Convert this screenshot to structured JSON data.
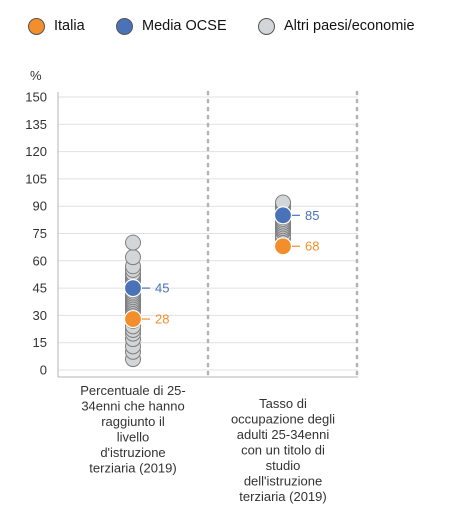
{
  "legend": [
    {
      "label": "Italia",
      "color": "#f28e2b"
    },
    {
      "label": "Media OCSE",
      "color": "#4a72b8"
    },
    {
      "label": "Altri paesi/economie",
      "color": "#d3d6d9"
    }
  ],
  "chart_data": {
    "type": "scatter",
    "ylabel": "%",
    "ylim": [
      0,
      150
    ],
    "yticks": [
      0,
      15,
      30,
      45,
      60,
      75,
      90,
      105,
      120,
      135,
      150
    ],
    "categories": [
      [
        "Percentuale di 25-",
        "34enni che hanno",
        "raggiunto il",
        "livello",
        "d'istruzione",
        "terziaria (2019)"
      ],
      [
        "Tasso di",
        "occupazione degli",
        "adulti 25-34enni",
        "con un titolo di",
        "studio",
        "dell'istruzione",
        "terziaria (2019)"
      ]
    ],
    "series": [
      {
        "name": "Altri paesi/economie",
        "color": "#d3d6d9",
        "values": [
          [
            6,
            10,
            13,
            17,
            20,
            22,
            24,
            27,
            28,
            30,
            31,
            33,
            34,
            35,
            36,
            37,
            38,
            39,
            40,
            41,
            42,
            43,
            44,
            45,
            46,
            47,
            48,
            49,
            50,
            51,
            52,
            53,
            55,
            57,
            62,
            70
          ],
          [
            68,
            72,
            74,
            76,
            77,
            78,
            79,
            80,
            81,
            82,
            83,
            84,
            85,
            86,
            87,
            88,
            89,
            90,
            91,
            92
          ]
        ]
      },
      {
        "name": "Media OCSE",
        "color": "#4a72b8",
        "values": [
          45,
          85
        ]
      },
      {
        "name": "Italia",
        "color": "#f28e2b",
        "values": [
          28,
          68
        ]
      }
    ],
    "grid": "horizontal",
    "legend_position": "top"
  }
}
